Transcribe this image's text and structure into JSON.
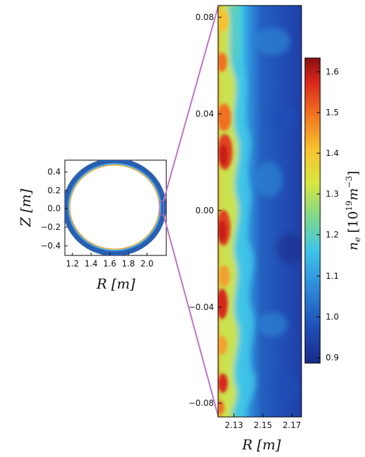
{
  "chart_data": [
    {
      "type": "heatmap",
      "panel": "poloidal cross-section",
      "title": "",
      "xlabel": "R [m]",
      "ylabel": "Z [m]",
      "xlim": [
        1.1,
        2.2
      ],
      "ylim": [
        -0.55,
        0.55
      ],
      "xticks": [
        "1.2",
        "1.4",
        "1.6",
        "1.8",
        "2.0"
      ],
      "yticks": [
        "0.4",
        "0.2",
        "0.0",
        "−0.2",
        "−0.4"
      ],
      "annulus": {
        "center_R": 1.65,
        "center_Z": 0.0,
        "inner_radius": 0.45,
        "outer_radius": 0.5,
        "separatrix_radius": 0.46
      },
      "colors": {
        "ring": "#2a5fb0",
        "ring_edge": "#1d3e8f",
        "separatrix": "#e0a030",
        "zoom_lines": "#c070c8"
      }
    },
    {
      "type": "heatmap",
      "panel": "zoomed edge density",
      "title": "",
      "xlabel": "R [m]",
      "ylabel": "",
      "xlim": [
        2.12,
        2.178
      ],
      "ylim": [
        -0.085,
        0.085
      ],
      "xticks": [
        "2.13",
        "2.15",
        "2.17"
      ],
      "yticks": [
        "0.08",
        "0.04",
        "0.00",
        "−0.04",
        "−0.08"
      ],
      "edge_profile": {
        "description": "peak density near inner R, decaying outward",
        "R": [
          2.12,
          2.125,
          2.13,
          2.135,
          2.14,
          2.15,
          2.16,
          2.178
        ],
        "n_e": [
          1.55,
          1.45,
          1.3,
          1.15,
          1.0,
          0.95,
          0.92,
          0.9
        ]
      },
      "hot_spots": [
        {
          "R": 2.121,
          "Z": 0.075,
          "n_e": 1.5
        },
        {
          "R": 2.122,
          "Z": 0.03,
          "n_e": 1.55
        },
        {
          "R": 2.122,
          "Z": -0.005,
          "n_e": 1.55
        },
        {
          "R": 2.121,
          "Z": -0.04,
          "n_e": 1.5
        },
        {
          "R": 2.121,
          "Z": -0.07,
          "n_e": 1.45
        }
      ]
    }
  ],
  "colorbar": {
    "label_main": "n",
    "label_sub": "e",
    "label_rest": " [10",
    "label_exp": "19",
    "label_unit": "m",
    "label_unit_exp": "−3",
    "label_close": "]",
    "min": 0.9,
    "max": 1.65,
    "ticks": [
      "1.6",
      "1.5",
      "1.4",
      "1.3",
      "1.2",
      "1.1",
      "1.0",
      "0.9"
    ],
    "tick_values": [
      1.6,
      1.5,
      1.4,
      1.3,
      1.2,
      1.1,
      1.0,
      0.9
    ],
    "colormap": [
      "#1a2a8a",
      "#1f4fb8",
      "#2f8fdc",
      "#3ec6e8",
      "#7fd88a",
      "#d8e640",
      "#f7c230",
      "#f07020",
      "#d8281c",
      "#8a0f10"
    ]
  }
}
